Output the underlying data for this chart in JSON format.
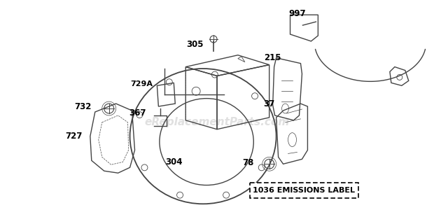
{
  "bg_color": "#ffffff",
  "line_color": "#444444",
  "label_color": "#000000",
  "watermark": "eReplacementParts.com",
  "watermark_color": "#cccccc",
  "emissions_label_text": "1036 EMISSIONS LABEL",
  "fig_w": 6.2,
  "fig_h": 3.1,
  "dpi": 100,
  "label_fontsize": 7.5,
  "watermark_fontsize": 11,
  "emissions_fontsize": 8
}
